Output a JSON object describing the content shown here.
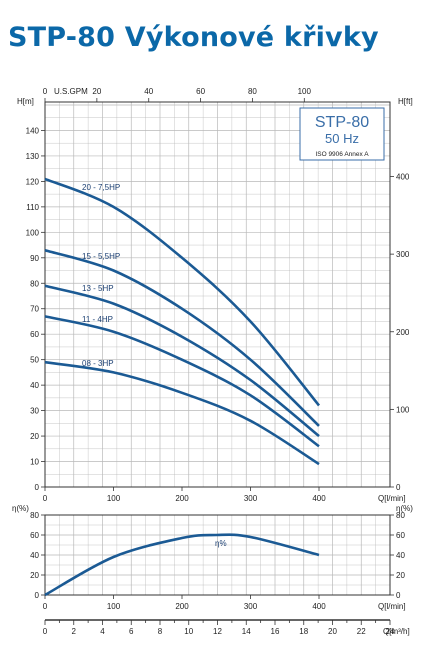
{
  "title": "STP-80 Výkonové křivky",
  "colors": {
    "title": "#0b68a8",
    "curve": "#1b5a94",
    "grid": "#b9b9b9",
    "box": "#3a6ea8"
  },
  "chart_data": [
    {
      "type": "line",
      "name": "head",
      "ylabel": "H[m]",
      "y2label": "H[ft]",
      "xlabel": "Q[l/min]",
      "top_axis_label": "U.S.GPM",
      "xlim": [
        0,
        400
      ],
      "ylim": [
        0,
        150
      ],
      "x_ticks": [
        0,
        100,
        200,
        300,
        400
      ],
      "y_ticks": [
        0,
        10,
        20,
        30,
        40,
        50,
        60,
        70,
        80,
        90,
        100,
        110,
        120,
        130,
        140
      ],
      "y2_ticks": [
        0,
        100,
        200,
        300,
        400
      ],
      "top_ticks": [
        0,
        20,
        40,
        60,
        80,
        100
      ],
      "grid": true,
      "box": {
        "model": "STP-80",
        "freq": "50 Hz",
        "standard": "ISO 9906 Annex A"
      },
      "series": [
        {
          "name": "20 - 7,5HP",
          "x": [
            0,
            100,
            200,
            300,
            400
          ],
          "y": [
            121,
            110,
            90,
            65,
            32
          ]
        },
        {
          "name": "15 - 5,5HP",
          "x": [
            0,
            100,
            200,
            300,
            400
          ],
          "y": [
            93,
            85,
            70,
            50,
            24
          ]
        },
        {
          "name": "13 - 5HP",
          "x": [
            0,
            100,
            200,
            300,
            400
          ],
          "y": [
            79,
            72,
            59,
            42,
            20
          ]
        },
        {
          "name": "11 - 4HP",
          "x": [
            0,
            100,
            200,
            300,
            400
          ],
          "y": [
            67,
            61,
            50,
            36,
            16
          ]
        },
        {
          "name": "08 - 3HP",
          "x": [
            0,
            100,
            200,
            300,
            400
          ],
          "y": [
            49,
            45,
            37,
            26,
            9
          ]
        }
      ]
    },
    {
      "type": "line",
      "name": "efficiency",
      "ylabel": "η(%)",
      "y2label": "η(%)",
      "xlabel": "Q[l/min]",
      "xlim": [
        0,
        400
      ],
      "ylim": [
        0,
        80
      ],
      "x_ticks": [
        0,
        100,
        200,
        300,
        400
      ],
      "y_ticks": [
        0,
        20,
        40,
        60,
        80
      ],
      "grid": true,
      "series": [
        {
          "name": "η%",
          "x": [
            0,
            100,
            200,
            250,
            300,
            400
          ],
          "y": [
            0,
            38,
            57,
            60,
            58,
            40
          ]
        }
      ]
    },
    {
      "type": "axis",
      "name": "flow-m3h",
      "xlabel": "Q[m³/h]",
      "xlim": [
        0,
        24
      ],
      "x_ticks": [
        0,
        2,
        4,
        6,
        8,
        10,
        12,
        14,
        16,
        18,
        20,
        22,
        24
      ]
    }
  ]
}
